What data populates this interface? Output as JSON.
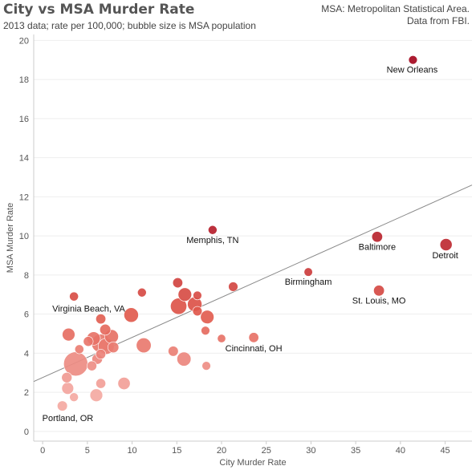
{
  "header": {
    "title": "City vs MSA Murder Rate",
    "subtitle": "2013 data; rate per 100,000; bubble size is MSA population",
    "note_line1": "MSA: Metropolitan Statistical Area.",
    "note_line2": "Data from FBI."
  },
  "colors": {
    "low": "#f4a9a2",
    "mid": "#e15a4d",
    "high": "#a5091f",
    "trend": "#888888",
    "grid": "#eeeeee",
    "axis_text": "#555555"
  },
  "chart_data": {
    "type": "scatter",
    "xlabel": "City Murder Rate",
    "ylabel": "MSA Murder Rate",
    "xlim": [
      -1,
      48
    ],
    "ylim": [
      -0.5,
      20.3
    ],
    "xticks": [
      0,
      5,
      10,
      15,
      20,
      25,
      30,
      35,
      40,
      45
    ],
    "yticks": [
      0,
      2,
      4,
      6,
      8,
      10,
      12,
      14,
      16,
      18,
      20
    ],
    "grid": "horizontal",
    "trendline": {
      "x": [
        -1,
        48
      ],
      "y": [
        2.55,
        12.6
      ]
    },
    "points": [
      {
        "label": "New Orleans",
        "x": 41.4,
        "y": 19.0,
        "size": 1.2
      },
      {
        "label": "Detroit",
        "x": 45.1,
        "y": 9.55,
        "size": 4.3
      },
      {
        "label": "Baltimore",
        "x": 37.4,
        "y": 9.95,
        "size": 2.8
      },
      {
        "label": "St. Louis, MO",
        "x": 37.6,
        "y": 7.2,
        "size": 2.8
      },
      {
        "label": "Birmingham",
        "x": 29.7,
        "y": 8.15,
        "size": 1.1
      },
      {
        "label": "Memphis, TN",
        "x": 19.0,
        "y": 10.3,
        "size": 1.3
      },
      {
        "label": "Cincinnati, OH",
        "x": 23.6,
        "y": 4.8,
        "size": 2.1
      },
      {
        "label": "Virginia Beach, VA",
        "x": 3.5,
        "y": 6.9,
        "size": 1.4
      },
      {
        "label": "Portland, OR",
        "x": 2.2,
        "y": 1.3,
        "size": 2.3
      },
      {
        "label": "",
        "x": 21.3,
        "y": 7.4,
        "size": 1.7
      },
      {
        "label": "",
        "x": 20.0,
        "y": 4.75,
        "size": 1.0
      },
      {
        "label": "",
        "x": 18.3,
        "y": 3.35,
        "size": 1.2
      },
      {
        "label": "",
        "x": 18.4,
        "y": 5.85,
        "size": 6.0
      },
      {
        "label": "",
        "x": 18.2,
        "y": 5.15,
        "size": 1.2
      },
      {
        "label": "",
        "x": 17.3,
        "y": 6.95,
        "size": 1.2
      },
      {
        "label": "",
        "x": 17.3,
        "y": 6.15,
        "size": 1.7
      },
      {
        "label": "",
        "x": 17.0,
        "y": 6.5,
        "size": 7.5
      },
      {
        "label": "",
        "x": 15.9,
        "y": 7.0,
        "size": 6.0
      },
      {
        "label": "",
        "x": 15.8,
        "y": 3.7,
        "size": 6.8
      },
      {
        "label": "",
        "x": 15.2,
        "y": 6.4,
        "size": 10.5
      },
      {
        "label": "",
        "x": 15.1,
        "y": 7.6,
        "size": 2.1
      },
      {
        "label": "",
        "x": 14.6,
        "y": 4.1,
        "size": 2.3
      },
      {
        "label": "",
        "x": 11.3,
        "y": 4.4,
        "size": 8.0
      },
      {
        "label": "",
        "x": 11.1,
        "y": 7.1,
        "size": 1.3
      },
      {
        "label": "",
        "x": 9.9,
        "y": 5.95,
        "size": 7.5
      },
      {
        "label": "",
        "x": 9.1,
        "y": 2.45,
        "size": 4.5
      },
      {
        "label": "",
        "x": 7.9,
        "y": 4.3,
        "size": 3.0
      },
      {
        "label": "",
        "x": 7.7,
        "y": 4.85,
        "size": 6.5
      },
      {
        "label": "",
        "x": 7.1,
        "y": 4.35,
        "size": 10.0
      },
      {
        "label": "",
        "x": 7.0,
        "y": 5.2,
        "size": 3.0
      },
      {
        "label": "",
        "x": 6.5,
        "y": 4.5,
        "size": 15.0
      },
      {
        "label": "",
        "x": 6.5,
        "y": 5.75,
        "size": 2.1
      },
      {
        "label": "",
        "x": 6.5,
        "y": 3.95,
        "size": 2.1
      },
      {
        "label": "",
        "x": 6.5,
        "y": 2.45,
        "size": 2.0
      },
      {
        "label": "",
        "x": 6.1,
        "y": 3.7,
        "size": 2.6
      },
      {
        "label": "",
        "x": 6.0,
        "y": 1.85,
        "size": 5.0
      },
      {
        "label": "",
        "x": 5.7,
        "y": 4.75,
        "size": 6.0
      },
      {
        "label": "",
        "x": 5.5,
        "y": 3.35,
        "size": 2.0
      },
      {
        "label": "",
        "x": 5.1,
        "y": 4.6,
        "size": 2.0
      },
      {
        "label": "",
        "x": 4.1,
        "y": 4.2,
        "size": 1.4
      },
      {
        "label": "",
        "x": 3.7,
        "y": 3.45,
        "size": 30.0
      },
      {
        "label": "",
        "x": 3.5,
        "y": 1.75,
        "size": 1.3
      },
      {
        "label": "",
        "x": 2.9,
        "y": 4.95,
        "size": 5.0
      },
      {
        "label": "",
        "x": 2.8,
        "y": 2.2,
        "size": 4.0
      },
      {
        "label": "",
        "x": 2.7,
        "y": 2.75,
        "size": 2.5
      }
    ]
  }
}
